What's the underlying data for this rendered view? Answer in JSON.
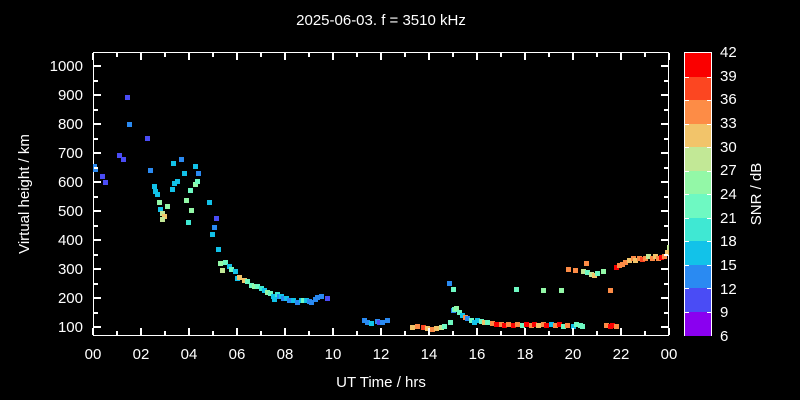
{
  "background_color": "#000000",
  "frame_color": "#ffffff",
  "text_color": "#ffffff",
  "chart_data": {
    "type": "scatter",
    "title": "2025-06-03. f = 3510 kHz",
    "xlabel": "UT Time / hrs",
    "ylabel": "Virtual height / km",
    "xlim": [
      0,
      24
    ],
    "ylim": [
      70,
      1050
    ],
    "x_major_tick_hours": [
      0,
      2,
      4,
      6,
      8,
      10,
      12,
      14,
      16,
      18,
      20,
      22,
      24
    ],
    "x_tick_labels": [
      "00",
      "02",
      "04",
      "06",
      "08",
      "10",
      "12",
      "14",
      "16",
      "18",
      "20",
      "22",
      "00"
    ],
    "x_minor_tick_hours": [
      1,
      3,
      5,
      7,
      9,
      11,
      13,
      15,
      17,
      19,
      21,
      23
    ],
    "y_tick_values": [
      100,
      200,
      300,
      400,
      500,
      600,
      700,
      800,
      900,
      1000
    ],
    "y_minor_tick_values": [
      150,
      250,
      350,
      450,
      550,
      650,
      750,
      850,
      950
    ],
    "grid": false,
    "legend_position": "colorbar-right",
    "colorbar": {
      "label": "SNR / dB",
      "min": 6,
      "max": 42,
      "step": 3,
      "tick_labels_top_to_bottom": [
        "42",
        "39",
        "36",
        "33",
        "30",
        "27",
        "24",
        "21",
        "18",
        "15",
        "12",
        "9",
        "6"
      ],
      "colors_bottom_to_top": [
        "#8a00f0",
        "#4a4cf5",
        "#2a8af2",
        "#12c2e9",
        "#3fe8d3",
        "#6ef9c2",
        "#93f8a7",
        "#c2e896",
        "#f2c46a",
        "#fd8c46",
        "#fc4621",
        "#fa0000"
      ]
    },
    "point_units": [
      "ut_hours",
      "virtual_height_km",
      "snr_db"
    ],
    "points": [
      [
        0.05,
        655,
        13.5
      ],
      [
        0.12,
        645,
        13.5
      ],
      [
        0.4,
        622,
        10.5
      ],
      [
        0.5,
        600,
        10.5
      ],
      [
        1.1,
        692,
        10.5
      ],
      [
        1.25,
        680,
        10.5
      ],
      [
        1.45,
        893,
        10.5
      ],
      [
        1.5,
        800,
        13.5
      ],
      [
        2.25,
        750,
        10.5
      ],
      [
        2.4,
        640,
        13.5
      ],
      [
        2.55,
        585,
        16.5
      ],
      [
        2.6,
        568,
        16.5
      ],
      [
        2.67,
        558,
        16.5
      ],
      [
        2.75,
        530,
        25.5
      ],
      [
        2.8,
        507,
        16.5
      ],
      [
        2.88,
        492,
        28.5
      ],
      [
        2.98,
        482,
        31.5
      ],
      [
        2.9,
        473,
        28.5
      ],
      [
        3.1,
        516,
        25.5
      ],
      [
        3.3,
        575,
        16.5
      ],
      [
        3.35,
        664,
        16.5
      ],
      [
        3.4,
        595,
        16.5
      ],
      [
        3.52,
        602,
        16.5
      ],
      [
        3.7,
        680,
        13.5
      ],
      [
        3.8,
        630,
        16.5
      ],
      [
        3.9,
        537,
        25.5
      ],
      [
        3.96,
        461,
        19.5
      ],
      [
        4.05,
        571,
        22.5
      ],
      [
        4.1,
        502,
        25.5
      ],
      [
        4.25,
        654,
        16.5
      ],
      [
        4.28,
        592,
        25.5
      ],
      [
        4.35,
        602,
        22.5
      ],
      [
        4.4,
        630,
        13.5
      ],
      [
        4.85,
        530,
        16.5
      ],
      [
        4.98,
        420,
        16.5
      ],
      [
        5.06,
        444,
        13.5
      ],
      [
        5.15,
        475,
        10.5
      ],
      [
        5.23,
        368,
        16.5
      ],
      [
        5.3,
        320,
        25.5
      ],
      [
        5.4,
        296,
        28.5
      ],
      [
        5.5,
        323,
        22.5
      ],
      [
        5.7,
        309,
        16.5
      ],
      [
        5.78,
        299,
        22.5
      ],
      [
        5.95,
        292,
        16.5
      ],
      [
        6.03,
        268,
        16.5
      ],
      [
        6.1,
        271,
        31.5
      ],
      [
        6.3,
        261,
        31.5
      ],
      [
        6.45,
        258,
        22.5
      ],
      [
        6.6,
        244,
        22.5
      ],
      [
        6.73,
        240,
        25.5
      ],
      [
        6.85,
        240,
        22.5
      ],
      [
        7.0,
        233,
        19.5
      ],
      [
        7.15,
        227,
        16.5
      ],
      [
        7.27,
        220,
        25.5
      ],
      [
        7.4,
        216,
        22.5
      ],
      [
        7.52,
        206,
        16.5
      ],
      [
        7.57,
        196,
        16.5
      ],
      [
        7.7,
        213,
        19.5
      ],
      [
        7.78,
        206,
        13.5
      ],
      [
        7.85,
        206,
        16.5
      ],
      [
        7.95,
        199,
        13.5
      ],
      [
        8.06,
        199,
        16.5
      ],
      [
        8.2,
        192,
        13.5
      ],
      [
        8.35,
        192,
        16.5
      ],
      [
        8.5,
        185,
        13.5
      ],
      [
        8.7,
        192,
        16.5
      ],
      [
        8.78,
        192,
        22.5
      ],
      [
        8.9,
        192,
        16.5
      ],
      [
        9.0,
        188,
        13.5
      ],
      [
        9.1,
        185,
        13.5
      ],
      [
        9.25,
        195,
        13.5
      ],
      [
        9.35,
        202,
        13.5
      ],
      [
        9.5,
        206,
        13.5
      ],
      [
        9.78,
        199,
        10.5
      ],
      [
        11.3,
        123,
        13.5
      ],
      [
        11.45,
        116,
        13.5
      ],
      [
        11.6,
        113,
        16.5
      ],
      [
        11.85,
        120,
        13.5
      ],
      [
        11.95,
        116,
        10.5
      ],
      [
        12.05,
        116,
        13.5
      ],
      [
        12.25,
        123,
        13.5
      ],
      [
        13.3,
        99,
        31.5
      ],
      [
        13.5,
        102,
        34.5
      ],
      [
        13.75,
        99,
        37.5
      ],
      [
        13.95,
        95,
        31.5
      ],
      [
        14.15,
        92,
        34.5
      ],
      [
        14.3,
        95,
        31.5
      ],
      [
        14.5,
        99,
        28.5
      ],
      [
        14.65,
        102,
        22.5
      ],
      [
        14.85,
        251,
        13.5
      ],
      [
        14.9,
        116,
        22.5
      ],
      [
        15.0,
        230,
        22.5
      ],
      [
        15.0,
        158,
        13.5
      ],
      [
        15.07,
        161,
        22.5
      ],
      [
        15.15,
        164,
        25.5
      ],
      [
        15.25,
        151,
        22.5
      ],
      [
        15.4,
        140,
        16.5
      ],
      [
        15.5,
        133,
        34.5
      ],
      [
        15.6,
        130,
        13.5
      ],
      [
        15.75,
        123,
        22.5
      ],
      [
        15.9,
        116,
        16.5
      ],
      [
        16.0,
        123,
        16.5
      ],
      [
        16.2,
        120,
        22.5
      ],
      [
        16.3,
        116,
        31.5
      ],
      [
        16.45,
        116,
        22.5
      ],
      [
        16.65,
        113,
        34.5
      ],
      [
        16.8,
        109,
        40.5
      ],
      [
        17.0,
        109,
        34.5
      ],
      [
        17.15,
        106,
        40.5
      ],
      [
        17.3,
        109,
        34.5
      ],
      [
        17.5,
        106,
        40.5
      ],
      [
        17.65,
        230,
        22.5
      ],
      [
        17.7,
        109,
        34.5
      ],
      [
        17.9,
        106,
        22.5
      ],
      [
        18.05,
        109,
        40.5
      ],
      [
        18.25,
        106,
        34.5
      ],
      [
        18.4,
        109,
        40.5
      ],
      [
        18.55,
        106,
        31.5
      ],
      [
        18.75,
        109,
        34.5
      ],
      [
        18.75,
        227,
        25.5
      ],
      [
        18.9,
        106,
        40.5
      ],
      [
        19.1,
        109,
        16.5
      ],
      [
        19.25,
        106,
        34.5
      ],
      [
        19.45,
        109,
        40.5
      ],
      [
        19.5,
        227,
        25.5
      ],
      [
        19.6,
        102,
        22.5
      ],
      [
        19.78,
        106,
        34.5
      ],
      [
        19.8,
        300,
        34.5
      ],
      [
        20.0,
        102,
        16.5
      ],
      [
        20.1,
        297,
        34.5
      ],
      [
        20.15,
        109,
        22.5
      ],
      [
        20.3,
        106,
        22.5
      ],
      [
        20.4,
        102,
        22.5
      ],
      [
        20.45,
        294,
        28.5
      ],
      [
        20.55,
        320,
        34.5
      ],
      [
        20.6,
        288,
        22.5
      ],
      [
        20.75,
        282,
        28.5
      ],
      [
        20.9,
        278,
        31.5
      ],
      [
        21.0,
        285,
        22.5
      ],
      [
        21.25,
        292,
        25.5
      ],
      [
        21.4,
        106,
        34.5
      ],
      [
        21.55,
        102,
        40.5
      ],
      [
        21.55,
        227,
        34.5
      ],
      [
        21.65,
        106,
        40.5
      ],
      [
        21.8,
        102,
        34.5
      ],
      [
        21.8,
        306,
        40.5
      ],
      [
        21.95,
        313,
        34.5
      ],
      [
        22.05,
        316,
        34.5
      ],
      [
        22.2,
        323,
        34.5
      ],
      [
        22.35,
        330,
        31.5
      ],
      [
        22.5,
        337,
        34.5
      ],
      [
        22.6,
        330,
        31.5
      ],
      [
        22.75,
        337,
        34.5
      ],
      [
        22.9,
        333,
        37.5
      ],
      [
        23.0,
        337,
        34.5
      ],
      [
        23.15,
        344,
        28.5
      ],
      [
        23.3,
        337,
        34.5
      ],
      [
        23.45,
        344,
        31.5
      ],
      [
        23.55,
        337,
        34.5
      ],
      [
        23.7,
        340,
        40.5
      ],
      [
        23.8,
        344,
        34.5
      ],
      [
        23.95,
        358,
        31.5
      ],
      [
        24.0,
        375,
        28.5
      ]
    ]
  }
}
